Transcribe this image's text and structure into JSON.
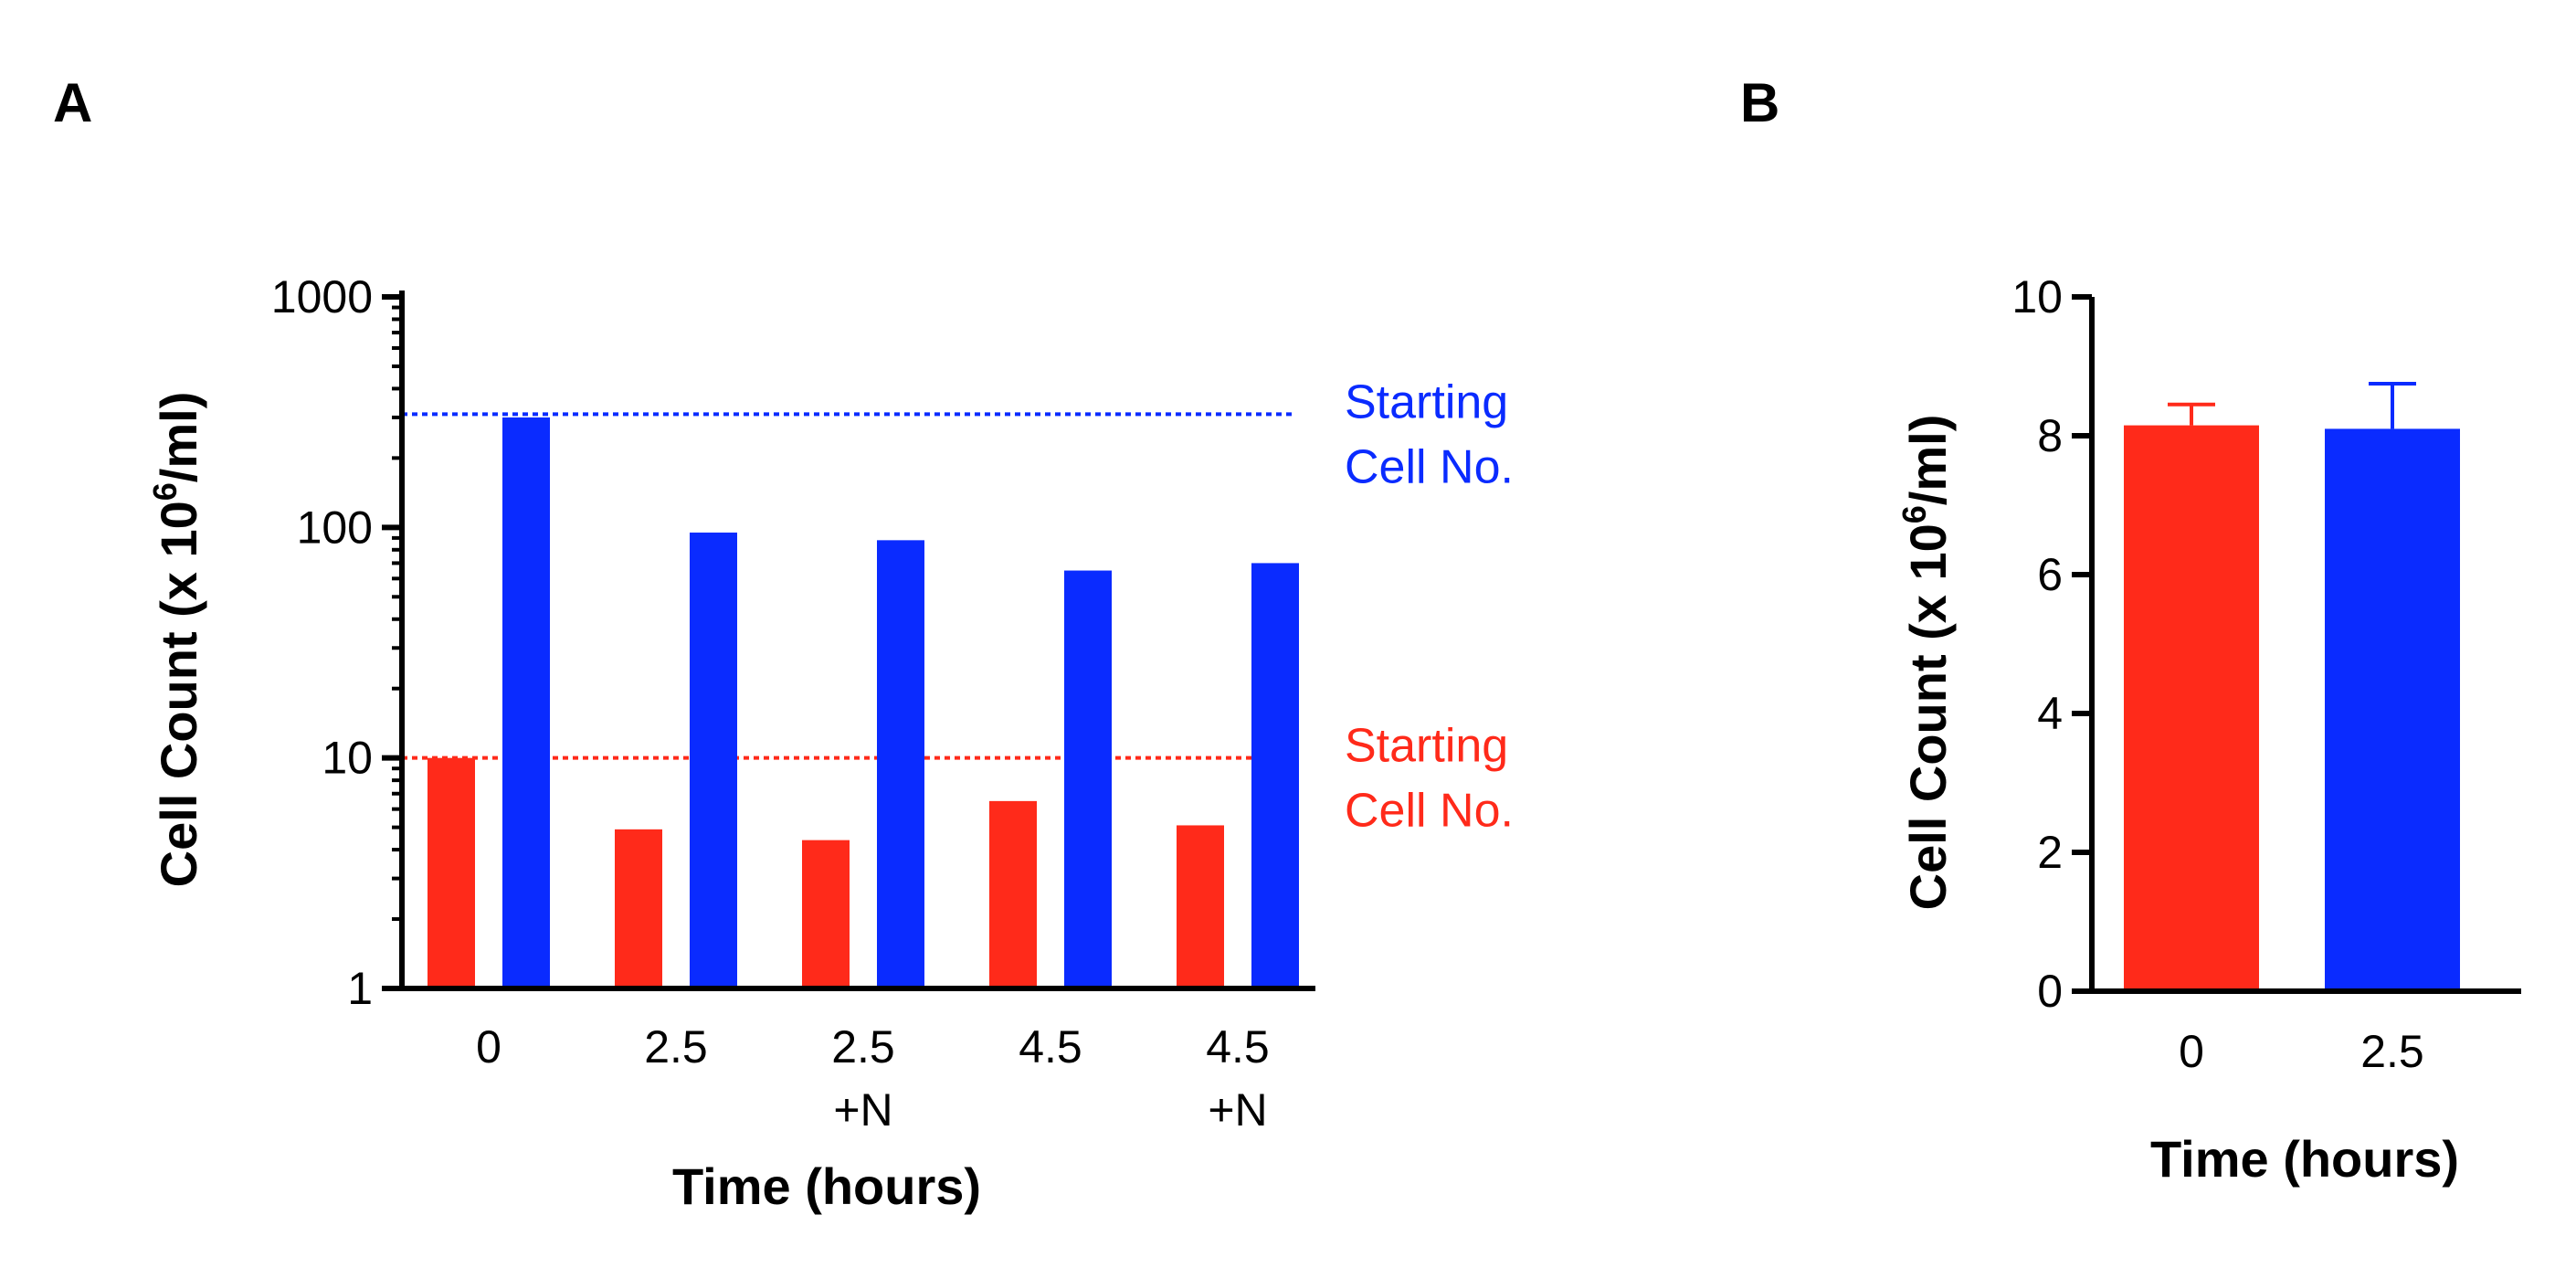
{
  "panels": {
    "a_label": "A",
    "b_label": "B"
  },
  "chart_data": [
    {
      "id": "A",
      "type": "bar",
      "yscale": "log",
      "ylim": [
        1,
        1000
      ],
      "yticks": [
        1,
        10,
        100,
        1000
      ],
      "ytick_labels": [
        "1",
        "10",
        "100",
        "1000"
      ],
      "ylabel": "Cell Count (x 10",
      "ylabel_sup": "6",
      "ylabel_tail": "/ml)",
      "xlabel": "Time (hours)",
      "categories": [
        {
          "line1": "0",
          "line2": ""
        },
        {
          "line1": "2.5",
          "line2": ""
        },
        {
          "line1": "2.5",
          "line2": "+N"
        },
        {
          "line1": "4.5",
          "line2": ""
        },
        {
          "line1": "4.5",
          "line2": "+N"
        }
      ],
      "series": [
        {
          "name": "red",
          "color": "#ff2a1a",
          "values": [
            10,
            4.9,
            4.4,
            6.5,
            5.1
          ]
        },
        {
          "name": "blue",
          "color": "#0a2bff",
          "values": [
            300,
            95,
            88,
            65,
            70
          ]
        }
      ],
      "reference_lines": [
        {
          "value": 310,
          "color": "#0a2bff",
          "line1": "Starting",
          "line2": "Cell No."
        },
        {
          "value": 10,
          "color": "#ff2a1a",
          "line1": "Starting",
          "line2": "Cell No."
        }
      ]
    },
    {
      "id": "B",
      "type": "bar",
      "yscale": "linear",
      "ylim": [
        0,
        10
      ],
      "yticks": [
        0,
        2,
        4,
        6,
        8,
        10
      ],
      "ylabel": "Cell Count (x 10",
      "ylabel_sup": "6",
      "ylabel_tail": "/ml)",
      "xlabel": "Time (hours)",
      "categories": [
        "0",
        "2.5"
      ],
      "values": [
        8.15,
        8.1
      ],
      "errors": [
        0.3,
        0.65
      ],
      "colors": [
        "#ff2a1a",
        "#0a2bff"
      ]
    }
  ]
}
